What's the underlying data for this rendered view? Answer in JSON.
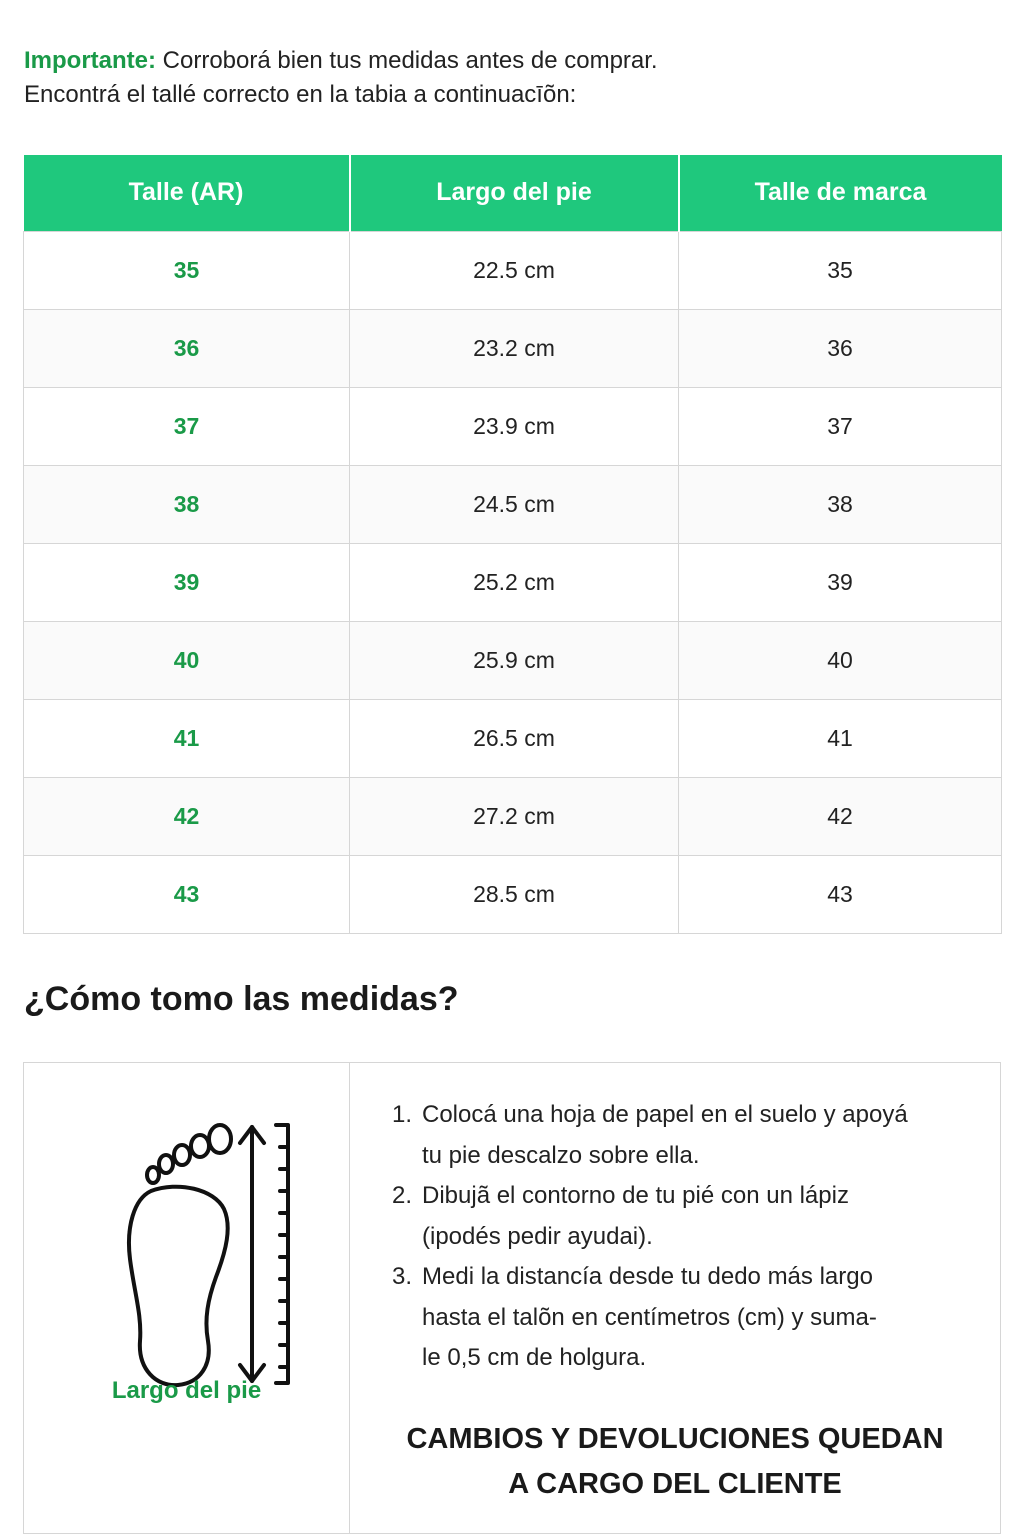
{
  "intro": {
    "highlight": "Importante:",
    "line1_rest": "Corroborá bien tus medidas antes de comprar.",
    "line2": "Encontrá el tallé correcto en la tabia a continuacīõn:"
  },
  "table": {
    "headers": [
      "Talle (AR)",
      "Largo del pie",
      "Talle de marca"
    ],
    "rows": [
      {
        "ar": "35",
        "length": "22.5 cm",
        "brand": "35"
      },
      {
        "ar": "36",
        "length": "23.2 cm",
        "brand": "36"
      },
      {
        "ar": "37",
        "length": "23.9 cm",
        "brand": "37"
      },
      {
        "ar": "38",
        "length": "24.5 cm",
        "brand": "38"
      },
      {
        "ar": "39",
        "length": "25.2 cm",
        "brand": "39"
      },
      {
        "ar": "40",
        "length": "25.9 cm",
        "brand": "40"
      },
      {
        "ar": "41",
        "length": "26.5 cm",
        "brand": "41"
      },
      {
        "ar": "42",
        "length": "27.2 cm",
        "brand": "42"
      },
      {
        "ar": "43",
        "length": "28.5 cm",
        "brand": "43"
      }
    ]
  },
  "howto": {
    "title": "¿Cómo tomo las medidas?",
    "caption": "Largo del pie",
    "steps": [
      {
        "num": "1.",
        "lines": [
          "Colocá una hoja de papel en el suelo y apoyá",
          "tu pie descalzo sobre ella."
        ]
      },
      {
        "num": "2.",
        "lines": [
          "Dibujã el contorno de tu pié con un lápiz",
          "(ipodés pedir ayudai)."
        ]
      },
      {
        "num": "3.",
        "lines": [
          "Medi la distancía desde tu dedo más largo",
          "hasta el talõn en centímetros (cm) y suma-",
          "le 0,5 cm de holgura."
        ]
      }
    ],
    "notice_line1": "CAMBIOS Y DEVOLUCIONES QUEDAN",
    "notice_line2": "A CARGO DEL CLIENTE"
  },
  "colors": {
    "accent_green": "#1fc87d",
    "text_green": "#1a9a48"
  },
  "icons": [
    "foot-icon",
    "ruler-icon",
    "double-arrow-icon"
  ]
}
